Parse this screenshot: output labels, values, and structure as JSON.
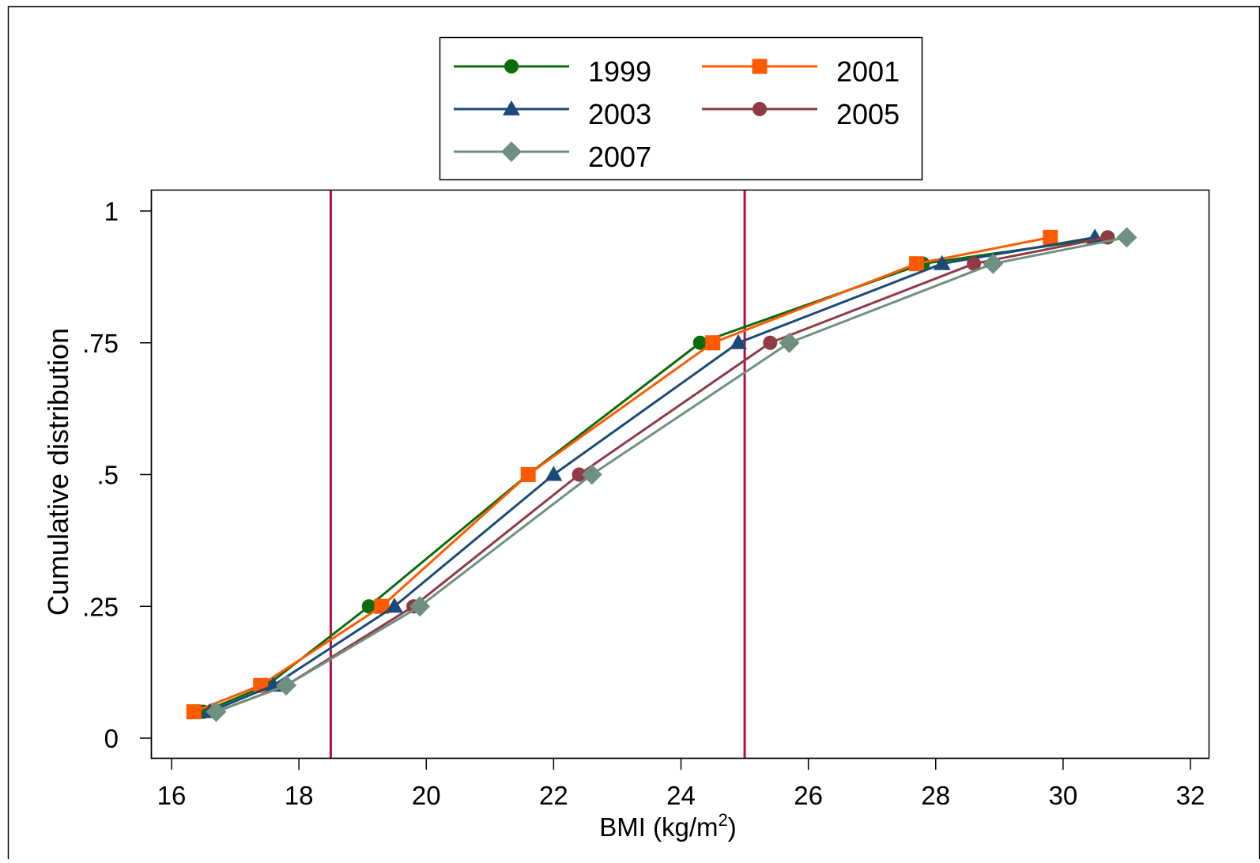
{
  "chart_data": {
    "type": "line",
    "title": "",
    "xlabel": "BMI (kg/m",
    "xlabel_sup": "2",
    "xlabel_close": ")",
    "ylabel": "Cumulative distribution",
    "xlim": [
      16,
      32
    ],
    "ylim": [
      0,
      1
    ],
    "x_ticks": [
      16,
      18,
      20,
      22,
      24,
      26,
      28,
      30,
      32
    ],
    "x_tick_labels": [
      "16",
      "18",
      "20",
      "22",
      "24",
      "26",
      "28",
      "30",
      "32"
    ],
    "y_ticks": [
      0,
      0.25,
      0.5,
      0.75,
      1
    ],
    "y_tick_labels": [
      "0",
      ".25",
      ".5",
      ".75",
      "1"
    ],
    "grid": false,
    "legend_position": "top-center",
    "reference_lines": {
      "x": [
        18.5,
        25
      ],
      "color": "#b5103c"
    },
    "series": [
      {
        "name": "1999",
        "color": "#0c6b0c",
        "marker": "circle",
        "points": [
          [
            16.5,
            0.05
          ],
          [
            17.5,
            0.1
          ],
          [
            19.1,
            0.25
          ],
          [
            21.6,
            0.5
          ],
          [
            24.3,
            0.75
          ],
          [
            27.8,
            0.9
          ],
          [
            30.7,
            0.95
          ]
        ]
      },
      {
        "name": "2001",
        "color": "#ff5a00",
        "marker": "square",
        "points": [
          [
            16.35,
            0.05
          ],
          [
            17.4,
            0.1
          ],
          [
            19.3,
            0.25
          ],
          [
            21.6,
            0.5
          ],
          [
            24.5,
            0.75
          ],
          [
            27.7,
            0.9
          ],
          [
            29.8,
            0.95
          ]
        ]
      },
      {
        "name": "2003",
        "color": "#1b4a78",
        "marker": "triangle",
        "points": [
          [
            16.6,
            0.05
          ],
          [
            17.6,
            0.1
          ],
          [
            19.5,
            0.25
          ],
          [
            22.0,
            0.5
          ],
          [
            24.9,
            0.75
          ],
          [
            28.1,
            0.9
          ],
          [
            30.5,
            0.95
          ]
        ]
      },
      {
        "name": "2005",
        "color": "#8f3a45",
        "marker": "circle",
        "points": [
          [
            16.7,
            0.05
          ],
          [
            17.8,
            0.1
          ],
          [
            19.8,
            0.25
          ],
          [
            22.4,
            0.5
          ],
          [
            25.4,
            0.75
          ],
          [
            28.6,
            0.9
          ],
          [
            30.7,
            0.95
          ]
        ]
      },
      {
        "name": "2007",
        "color": "#6f8f80",
        "marker": "diamond",
        "points": [
          [
            16.7,
            0.05
          ],
          [
            17.8,
            0.1
          ],
          [
            19.9,
            0.25
          ],
          [
            22.6,
            0.5
          ],
          [
            25.7,
            0.75
          ],
          [
            28.9,
            0.9
          ],
          [
            31.0,
            0.95
          ]
        ]
      }
    ]
  }
}
